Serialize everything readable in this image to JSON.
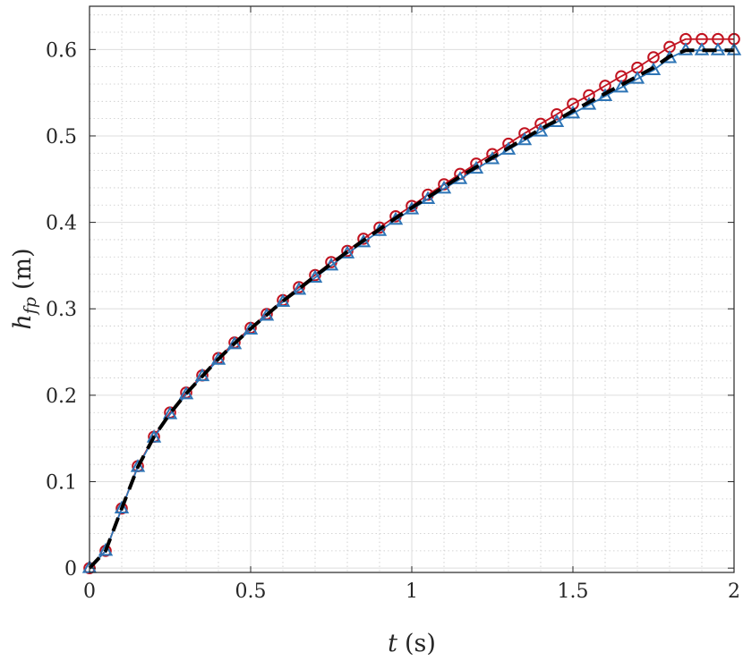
{
  "chart_data": {
    "type": "line",
    "xlabel_var": "t",
    "xlabel_unit": "(s)",
    "ylabel_var": "h",
    "ylabel_sub": "fp",
    "ylabel_unit": "(m)",
    "xlim": [
      0,
      2
    ],
    "ylim": [
      -0.005,
      0.65
    ],
    "xticks": [
      0,
      0.5,
      1,
      1.5,
      2
    ],
    "xtick_labels": [
      "0",
      "0.5",
      "1",
      "1.5",
      "2"
    ],
    "yticks": [
      0,
      0.1,
      0.2,
      0.3,
      0.4,
      0.5,
      0.6
    ],
    "ytick_labels": [
      "0",
      "0.1",
      "0.2",
      "0.3",
      "0.4",
      "0.5",
      "0.6"
    ],
    "grid": true,
    "minor_grid": true,
    "legend": "none",
    "series": [
      {
        "marker": "none",
        "color": "#000000",
        "line_style": "dashed",
        "x": [
          0,
          0.05,
          0.1,
          0.15,
          0.2,
          0.25,
          0.3,
          0.35,
          0.4,
          0.45,
          0.5,
          0.55,
          0.6,
          0.65,
          0.7,
          0.75,
          0.8,
          0.85,
          0.9,
          0.95,
          1.0,
          1.05,
          1.1,
          1.15,
          1.2,
          1.25,
          1.3,
          1.35,
          1.4,
          1.45,
          1.5,
          1.55,
          1.6,
          1.65,
          1.7,
          1.75,
          1.8,
          1.85,
          1.9,
          1.95,
          2.0
        ],
        "y": [
          0,
          0.02,
          0.069,
          0.117,
          0.152,
          0.179,
          0.202,
          0.222,
          0.242,
          0.26,
          0.277,
          0.293,
          0.309,
          0.323,
          0.338,
          0.352,
          0.366,
          0.379,
          0.392,
          0.405,
          0.417,
          0.429,
          0.441,
          0.453,
          0.464,
          0.475,
          0.486,
          0.497,
          0.508,
          0.518,
          0.529,
          0.539,
          0.549,
          0.559,
          0.569,
          0.579,
          0.592,
          0.599,
          0.599,
          0.599,
          0.599
        ]
      },
      {
        "marker": "circle",
        "color": "#c1121f",
        "line_style": "solid",
        "x": [
          0,
          0.05,
          0.1,
          0.15,
          0.2,
          0.25,
          0.3,
          0.35,
          0.4,
          0.45,
          0.5,
          0.55,
          0.6,
          0.65,
          0.7,
          0.75,
          0.8,
          0.85,
          0.9,
          0.95,
          1.0,
          1.05,
          1.1,
          1.15,
          1.2,
          1.25,
          1.3,
          1.35,
          1.4,
          1.45,
          1.5,
          1.55,
          1.6,
          1.65,
          1.7,
          1.75,
          1.8,
          1.85,
          1.9,
          1.95,
          2.0
        ],
        "y": [
          0,
          0.02,
          0.069,
          0.118,
          0.152,
          0.18,
          0.203,
          0.223,
          0.243,
          0.261,
          0.278,
          0.294,
          0.31,
          0.325,
          0.339,
          0.354,
          0.367,
          0.381,
          0.394,
          0.407,
          0.419,
          0.432,
          0.444,
          0.456,
          0.468,
          0.479,
          0.491,
          0.503,
          0.514,
          0.525,
          0.537,
          0.547,
          0.558,
          0.569,
          0.579,
          0.591,
          0.603,
          0.612,
          0.612,
          0.612,
          0.612
        ]
      },
      {
        "marker": "triangle",
        "color": "#2e75b6",
        "line_style": "solid",
        "x": [
          0,
          0.05,
          0.1,
          0.15,
          0.2,
          0.25,
          0.3,
          0.35,
          0.4,
          0.45,
          0.5,
          0.55,
          0.6,
          0.65,
          0.7,
          0.75,
          0.8,
          0.85,
          0.9,
          0.95,
          1.0,
          1.05,
          1.1,
          1.15,
          1.2,
          1.25,
          1.3,
          1.35,
          1.4,
          1.45,
          1.5,
          1.55,
          1.6,
          1.65,
          1.7,
          1.75,
          1.8,
          1.85,
          1.9,
          1.95,
          2.0
        ],
        "y": [
          0,
          0.02,
          0.069,
          0.117,
          0.151,
          0.178,
          0.201,
          0.222,
          0.241,
          0.259,
          0.276,
          0.292,
          0.308,
          0.322,
          0.336,
          0.35,
          0.364,
          0.377,
          0.39,
          0.403,
          0.415,
          0.427,
          0.439,
          0.45,
          0.462,
          0.473,
          0.484,
          0.495,
          0.505,
          0.516,
          0.526,
          0.536,
          0.546,
          0.556,
          0.566,
          0.576,
          0.59,
          0.599,
          0.599,
          0.599,
          0.599
        ]
      }
    ]
  }
}
